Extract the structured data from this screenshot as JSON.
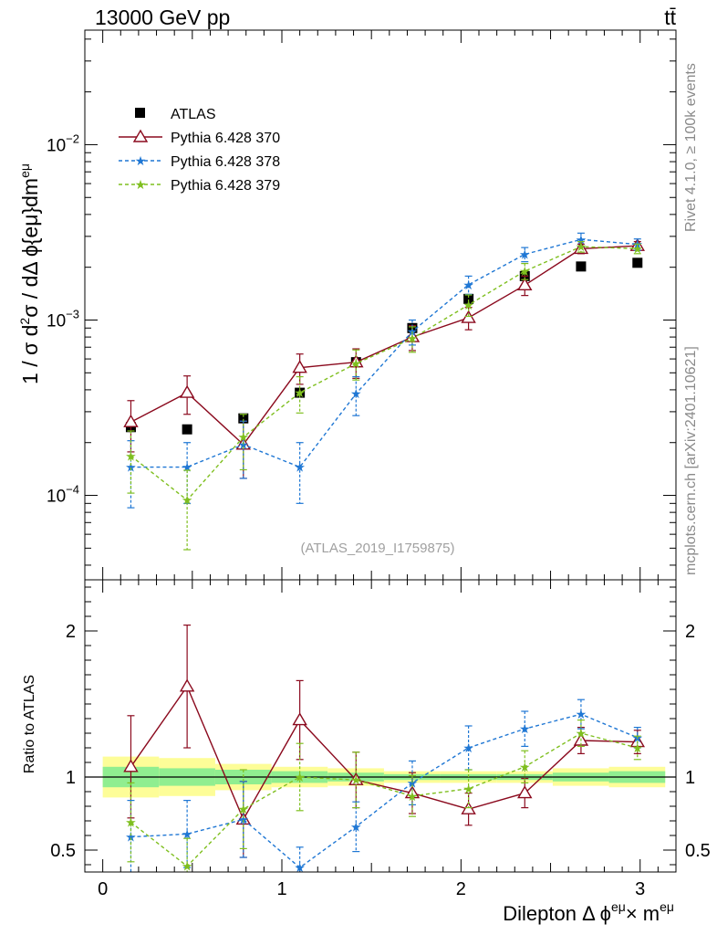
{
  "header": {
    "left": "13000 GeV pp",
    "right": "tt̄"
  },
  "side": {
    "rivet": "Rivet 4.1.0, ≥ 100k events",
    "source": "mcplots.cern.ch [arXiv:2401.10621]"
  },
  "chart_data": [
    {
      "type": "scatter",
      "panel": "main",
      "ylabel": "1 / σ  d²σ / dΔ ϕ{eμ}dm^eμ",
      "yscale": "log",
      "ylim": [
        3.3e-05,
        0.045
      ],
      "xlim": [
        -0.1,
        3.2
      ],
      "ytick_labels": [
        "10^-4",
        "10^-3",
        "10^-2"
      ],
      "annotation": "(ATLAS_2019_I1759875)",
      "legend_position": "top-left",
      "x": [
        0.157,
        0.471,
        0.785,
        1.1,
        1.414,
        1.728,
        2.042,
        2.356,
        2.67,
        2.985
      ],
      "series": [
        {
          "name": "ATLAS",
          "marker": "square",
          "color": "#000000",
          "values": [
            0.000245,
            0.000238,
            0.000275,
            0.000385,
            0.000575,
            0.0009,
            0.00132,
            0.00178,
            0.00202,
            0.00212
          ],
          "errors": [
            0.0,
            0.0,
            0.0,
            0.0,
            0.0,
            0.0,
            0.0,
            0.0,
            0.0,
            0.0
          ]
        },
        {
          "name": "Pythia 6.428 370",
          "marker": "triangle",
          "line": "solid",
          "color": "#8b0a1e",
          "values": [
            0.000262,
            0.000385,
            0.000195,
            0.000535,
            0.000575,
            0.0008,
            0.00103,
            0.00158,
            0.00255,
            0.00265
          ],
          "errors": [
            8.5e-05,
            9.5e-05,
            7e-05,
            0.000105,
            0.00011,
            0.00013,
            0.00015,
            0.0002,
            0.00016,
            0.00015
          ]
        },
        {
          "name": "Pythia 6.428 378",
          "marker": "star",
          "line": "dashed",
          "color": "#1f77d4",
          "values": [
            0.000145,
            0.000145,
            0.000195,
            0.000145,
            0.00038,
            0.00086,
            0.00159,
            0.00237,
            0.00288,
            0.0027
          ],
          "errors": [
            6e-05,
            5.5e-05,
            7e-05,
            5.5e-05,
            9.5e-05,
            0.00014,
            0.00019,
            0.00022,
            0.00025,
            0.0002
          ]
        },
        {
          "name": "Pythia 6.428 379",
          "marker": "star",
          "line": "dashed",
          "color": "#7fbf1f",
          "values": [
            0.000168,
            9.4e-05,
            0.000215,
            0.000385,
            0.000565,
            0.000785,
            0.00122,
            0.0019,
            0.00262,
            0.00255
          ],
          "errors": [
            6.5e-05,
            4.5e-05,
            7.5e-05,
            9e-05,
            0.00011,
            0.00013,
            0.00017,
            0.0002,
            0.00018,
            0.00016
          ]
        }
      ]
    },
    {
      "type": "line",
      "panel": "ratio",
      "ylabel": "Ratio to ATLAS",
      "xlabel": "Dilepton Δ ϕ^eμ× m^eμ",
      "ylim": [
        0.35,
        2.35
      ],
      "xlim": [
        -0.1,
        3.2
      ],
      "yticks": [
        0.5,
        1,
        2
      ],
      "ytick_labels": [
        "0.5",
        "1",
        "2"
      ],
      "xticks": [
        0,
        1,
        2,
        3
      ],
      "xtick_labels": [
        "0",
        "1",
        "2",
        "3"
      ],
      "reference": 1,
      "band_edges": [
        0,
        0.314,
        0.628,
        0.942,
        1.256,
        1.57,
        1.884,
        2.198,
        2.512,
        2.826,
        3.14
      ],
      "band_inner": [
        0.07,
        0.06,
        0.05,
        0.04,
        0.03,
        0.02,
        0.02,
        0.02,
        0.03,
        0.04
      ],
      "band_outer": [
        0.14,
        0.13,
        0.09,
        0.07,
        0.06,
        0.04,
        0.04,
        0.04,
        0.06,
        0.07
      ],
      "x": [
        0.157,
        0.471,
        0.785,
        1.1,
        1.414,
        1.728,
        2.042,
        2.356,
        2.67,
        2.985
      ],
      "series": [
        {
          "name": "Pythia 6.428 370",
          "marker": "triangle",
          "line": "solid",
          "color": "#8b0a1e",
          "values": [
            1.07,
            1.62,
            0.71,
            1.39,
            0.98,
            0.89,
            0.78,
            0.89,
            1.25,
            1.24
          ],
          "errors": [
            0.35,
            0.42,
            0.26,
            0.27,
            0.19,
            0.14,
            0.11,
            0.1,
            0.09,
            0.08
          ]
        },
        {
          "name": "Pythia 6.428 378",
          "marker": "star",
          "line": "dashed",
          "color": "#1f77d4",
          "values": [
            0.59,
            0.61,
            0.71,
            0.38,
            0.66,
            0.96,
            1.2,
            1.33,
            1.43,
            1.27
          ],
          "errors": [
            0.25,
            0.23,
            0.26,
            0.14,
            0.17,
            0.15,
            0.15,
            0.12,
            0.1,
            0.07
          ]
        },
        {
          "name": "Pythia 6.428 379",
          "marker": "star",
          "line": "dashed",
          "color": "#7fbf1f",
          "values": [
            0.69,
            0.39,
            0.78,
            1.0,
            0.98,
            0.87,
            0.92,
            1.07,
            1.3,
            1.2
          ],
          "errors": [
            0.27,
            0.19,
            0.27,
            0.23,
            0.19,
            0.14,
            0.13,
            0.11,
            0.09,
            0.08
          ]
        }
      ]
    }
  ]
}
